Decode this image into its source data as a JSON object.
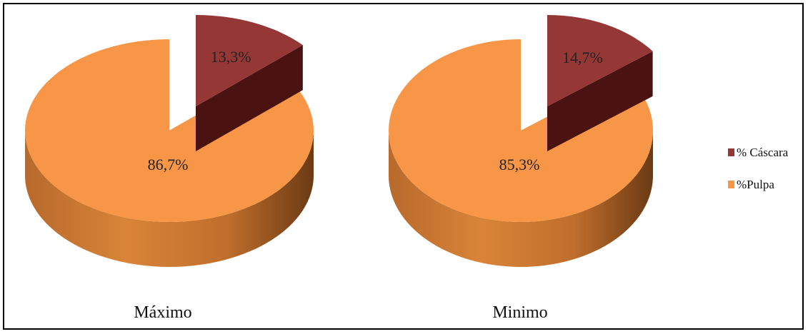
{
  "chart_data": {
    "type": "pie",
    "style": "3d-exploded",
    "legend_position": "right",
    "categories": [
      "% Cáscara",
      "%Pulpa"
    ],
    "colors": {
      "% Cáscara": "#953735",
      "%Pulpa": "#F79646"
    },
    "pies": [
      {
        "name": "Máximo",
        "values": [
          13.3,
          86.7
        ],
        "labels": [
          "13,3%",
          "86,7%"
        ]
      },
      {
        "name": "Minimo",
        "values": [
          14.7,
          85.3
        ],
        "labels": [
          "14,7%",
          "85,3%"
        ]
      }
    ]
  }
}
